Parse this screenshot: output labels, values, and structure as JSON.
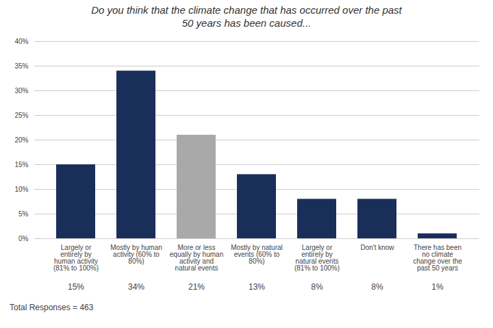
{
  "chart_data": {
    "type": "bar",
    "title": "Do you think that the climate change that has occurred over the past\n50 years has been caused...",
    "categories": [
      "Largely or\nentirely by\nhuman activity\n(81% to 100%)",
      "Mostly by human\nactivity (60% to\n80%)",
      "More or less\nequally by human\nactivity and\nnatural events",
      "Mostly by natural\nevents (60% to\n80%)",
      "Largely or\nentirely by\nnatural events\n(81% to 100%)",
      "Don't know",
      "There has been\nno climate\nchange over the\npast 50 years"
    ],
    "values": [
      15,
      34,
      21,
      13,
      8,
      8,
      1
    ],
    "value_labels": [
      "15%",
      "34%",
      "21%",
      "13%",
      "8%",
      "8%",
      "1%"
    ],
    "data_labels": true,
    "colors": [
      "#1a2e5a",
      "#1a2e5a",
      "#a9a9a9",
      "#1a2e5a",
      "#1a2e5a",
      "#1a2e5a",
      "#1a2e5a"
    ],
    "ylim": [
      0,
      40
    ],
    "yticks": [
      {
        "value": 0,
        "label": "0%"
      },
      {
        "value": 5,
        "label": "5%"
      },
      {
        "value": 10,
        "label": "10%"
      },
      {
        "value": 15,
        "label": "15%"
      },
      {
        "value": 20,
        "label": "20%"
      },
      {
        "value": 25,
        "label": "25%"
      },
      {
        "value": 30,
        "label": "30%"
      },
      {
        "value": 35,
        "label": "35%"
      },
      {
        "value": 40,
        "label": "40%"
      }
    ],
    "grid": true,
    "annotations": [
      "Total Responses = 463"
    ]
  }
}
